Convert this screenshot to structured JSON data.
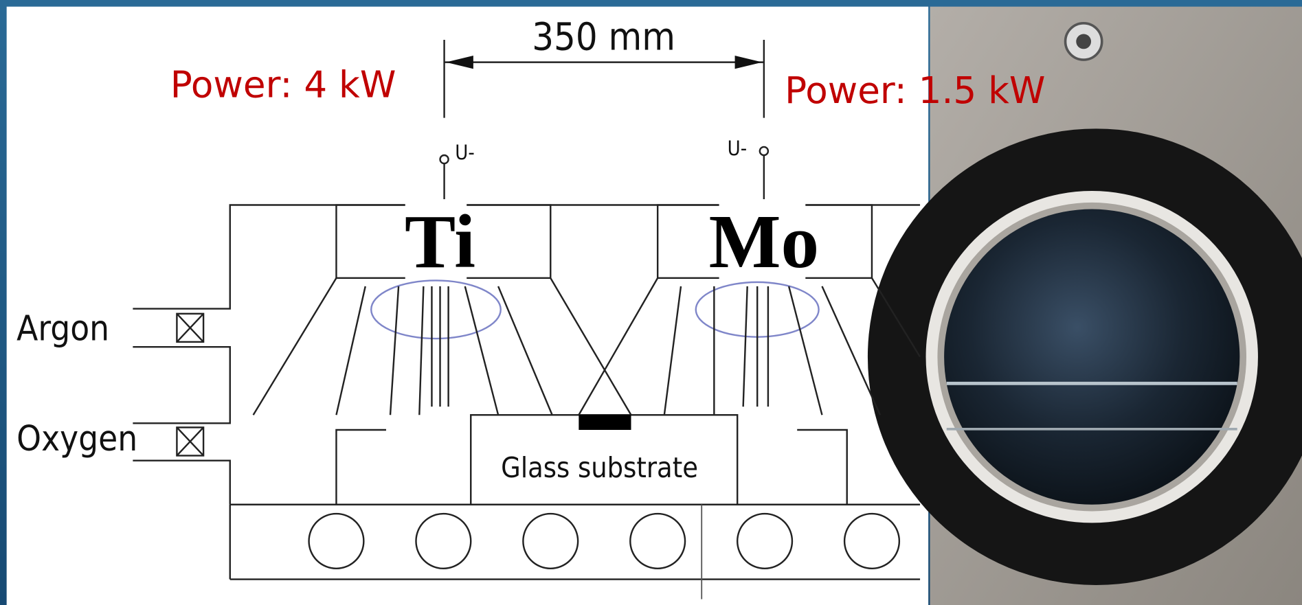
{
  "dimension": "350 mm",
  "targets": [
    {
      "label": "Ti",
      "power": "Power: 4 kW",
      "voltage": "U-"
    },
    {
      "label": "Mo",
      "power": "Power: 1.5 kW",
      "voltage": "U-"
    }
  ],
  "gases": [
    "Argon",
    "Oxygen"
  ],
  "substrate": "Glass substrate"
}
